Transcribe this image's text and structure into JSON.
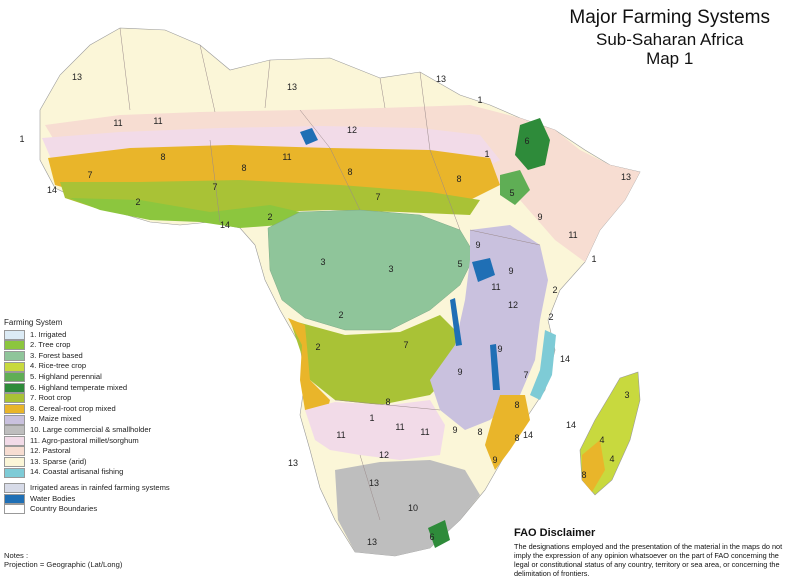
{
  "title": {
    "line1": "Major Farming Systems",
    "line2": "Sub-Saharan Africa",
    "line3": "Map 1"
  },
  "legend": {
    "heading": "Farming System",
    "items": [
      {
        "label": "1. Irrigated",
        "color": "#dcebf5"
      },
      {
        "label": "2. Tree crop",
        "color": "#8cc63e"
      },
      {
        "label": "3. Forest based",
        "color": "#8fc59a"
      },
      {
        "label": "4. Rice-tree crop",
        "color": "#c8d93e"
      },
      {
        "label": "5. Highland perennial",
        "color": "#5fae55"
      },
      {
        "label": "6. Highland temperate mixed",
        "color": "#2e8b3a"
      },
      {
        "label": "7. Root crop",
        "color": "#a9c236"
      },
      {
        "label": "8. Cereal-root crop mixed",
        "color": "#e9b52a"
      },
      {
        "label": "9. Maize mixed",
        "color": "#c9c1de"
      },
      {
        "label": "10. Large commercial & smallholder",
        "color": "#bebebe"
      },
      {
        "label": "11. Agro-pastoral millet/sorghum",
        "color": "#f2dbe8"
      },
      {
        "label": "12. Pastoral",
        "color": "#f7ddd2"
      },
      {
        "label": "13. Sparse (arid)",
        "color": "#fbf6d8"
      },
      {
        "label": "14. Coastal artisanal fishing",
        "color": "#7ecbd6"
      }
    ],
    "extras": [
      {
        "label": "Irrigated areas in rainfed farming systems",
        "color": "#d7dbe8"
      },
      {
        "label": "Water Bodies",
        "color": "#1f6fb5"
      },
      {
        "label": "Country Boundaries",
        "color": "#ffffff"
      }
    ]
  },
  "notes": {
    "heading": "Notes :",
    "projection": "Projection = Geographic (Lat/Long)"
  },
  "disclaimer": {
    "heading": "FAO Disclaimer",
    "body": "The designations employed and the presentation of the material in the maps do not imply the expression of any opinion whatsoever on the part of FAO concerning the legal or constitutional status of any country, territory or sea area, or concerning the delimitation of frontiers."
  },
  "map_labels": {
    "l1": "13",
    "l2": "13",
    "l3": "13",
    "l4": "12",
    "l5": "11",
    "l6": "11",
    "l7": "11",
    "l8": "8",
    "l9": "8",
    "l10": "8",
    "l11": "8",
    "l12": "7",
    "l13": "7",
    "l14": "7",
    "l15": "2",
    "l16": "2",
    "l17": "14",
    "l18": "14",
    "l19": "1",
    "l20": "1",
    "l21": "6",
    "l22": "5",
    "l23": "9",
    "l24": "13",
    "l25": "11",
    "l26": "1",
    "l27": "3",
    "l28": "3",
    "l29": "9",
    "l30": "5",
    "l31": "11",
    "l32": "2",
    "l33": "12",
    "l34": "2",
    "l35": "2",
    "l36": "2",
    "l37": "7",
    "l38": "9",
    "l39": "9",
    "l40": "7",
    "l41": "14",
    "l42": "8",
    "l43": "11",
    "l44": "9",
    "l45": "12",
    "l46": "13",
    "l47": "13",
    "l48": "10",
    "l49": "8",
    "l50": "9",
    "l51": "6",
    "l52": "8",
    "l53": "14",
    "l54": "4",
    "l55": "4",
    "l56": "8",
    "l57": "3",
    "l58": "14",
    "l59": "13",
    "l60": "11",
    "l61": "11",
    "l62": "1",
    "l63": "1",
    "l64": "9",
    "l65": "8"
  }
}
